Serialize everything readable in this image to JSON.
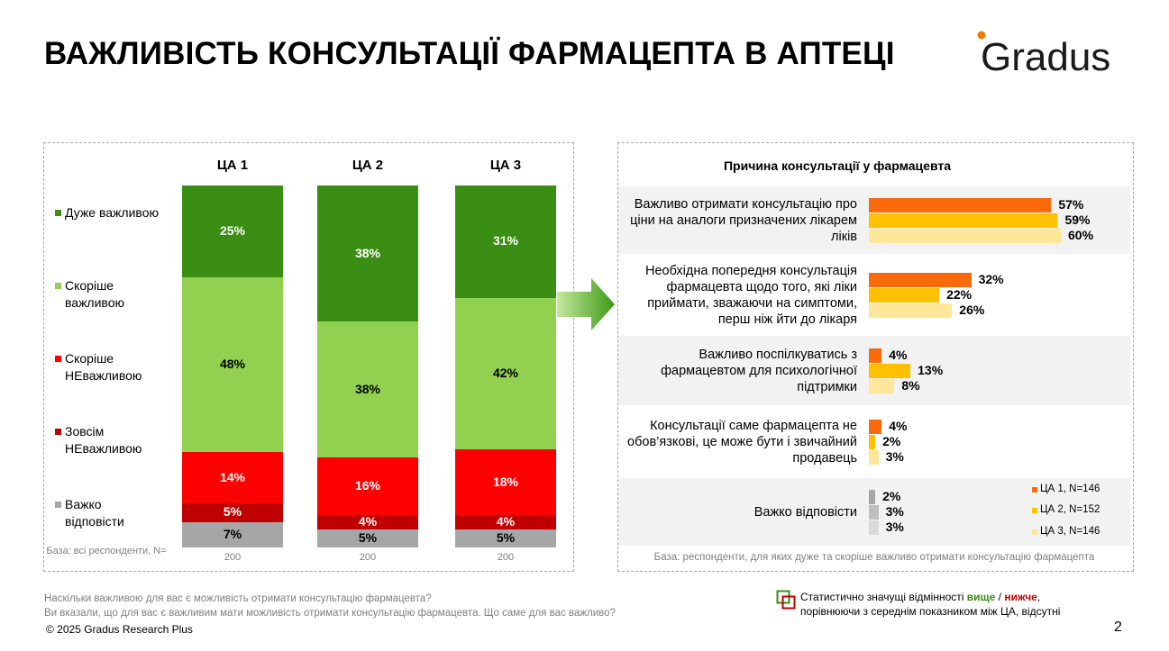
{
  "title": "ВАЖЛИВІСТЬ КОНСУЛЬТАЦІЇ ФАРМАЦЕПТА В АПТЕЦІ",
  "logo_text": "Gradus",
  "left_chart": {
    "legend": [
      {
        "label": "Дуже важливою",
        "color": "#3a8e13"
      },
      {
        "label": "Скоріше важливою",
        "color": "#92d050"
      },
      {
        "label": "Скоріше НЕважливою",
        "color": "#ff0000"
      },
      {
        "label": "Зовсім НЕважливою",
        "color": "#c00000"
      },
      {
        "label": "Важко відповісти",
        "color": "#a6a6a6"
      }
    ],
    "base_label": "База: всі респонденти, N="
  },
  "right_chart": {
    "title": "Причина консультації у фармацевта",
    "base_note": "База: респонденти, для яких дуже та скоріше важливо отримати консультацію фармацепта",
    "series_colors": [
      "#fa6a0a",
      "#ffc000",
      "#ffe699"
    ]
  },
  "chart_data": [
    {
      "type": "bar",
      "stacked": true,
      "categories": [
        "ЦА 1",
        "ЦА 2",
        "ЦА 3"
      ],
      "series": [
        {
          "name": "Дуже важливою",
          "values": [
            25,
            38,
            31
          ]
        },
        {
          "name": "Скоріше важливою",
          "values": [
            48,
            38,
            42
          ]
        },
        {
          "name": "Скоріше НЕважливою",
          "values": [
            14,
            16,
            18
          ]
        },
        {
          "name": "Зовсім НЕважливою",
          "values": [
            5,
            4,
            4
          ]
        },
        {
          "name": "Важко відповісти",
          "values": [
            7,
            5,
            5
          ]
        }
      ],
      "base_n": [
        "200",
        "200",
        "200"
      ],
      "unit": "%"
    },
    {
      "type": "bar",
      "orientation": "horizontal",
      "title": "Причина консультації у фармацевта",
      "categories": [
        "Важливо отримати консультацію про ціни на аналоги призначених лікарем ліків",
        "Необхідна попередня консультація фармацевта щодо того, які ліки приймати, зважаючи на симптоми, перш ніж йти до лікаря",
        "Важливо поспілкуватись з фармацевтом для психологічної підтримки",
        "Консультації саме фармацепта не обов’язкові, це може бути і звичайний продавець",
        "Важко відповісти"
      ],
      "series": [
        {
          "name": "ЦА 1, N=146",
          "values": [
            57,
            32,
            4,
            4,
            2
          ]
        },
        {
          "name": "ЦА 2, N=152",
          "values": [
            59,
            22,
            13,
            2,
            3
          ]
        },
        {
          "name": "ЦА 3, N=146",
          "values": [
            60,
            26,
            8,
            3,
            3
          ]
        }
      ],
      "unit": "%",
      "last_row_color": [
        "#a6a6a6",
        "#bfbfbf",
        "#d9d9d9"
      ]
    }
  ],
  "footnote": {
    "line1": "Наскільки важливою для вас є можливість отримати консультацію фармацевта?",
    "line2": "Ви вказали, що для вас є важливим мати можливість отримати консультацію фармацевта. Що саме для вас важливо?"
  },
  "copyright": "© 2025 Gradus Research Plus",
  "significance": {
    "prefix": "Статистично значущі відмінності ",
    "higher": "вище",
    "sep": " / ",
    "lower": "нижче",
    "suffix": ",",
    "line2": "порівнюючи з середнім показником між ЦА, відсутні",
    "higher_color": "#3a8e13",
    "lower_color": "#c00000"
  },
  "page_number": "2"
}
